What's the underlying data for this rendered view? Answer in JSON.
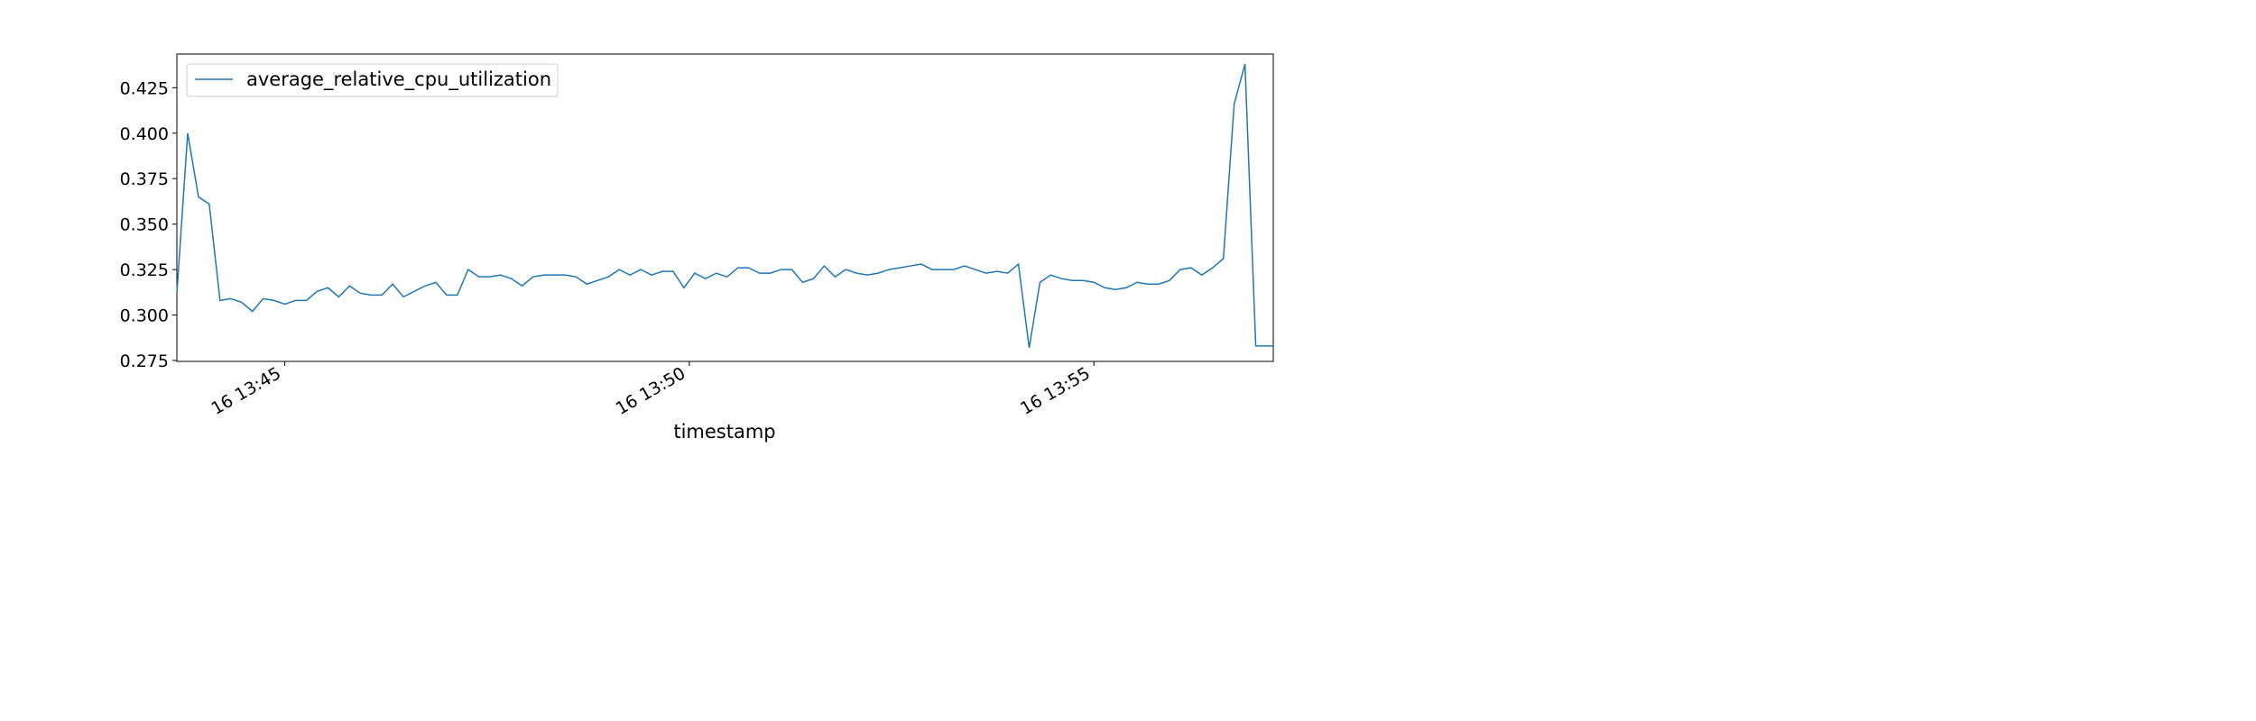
{
  "chart_data": {
    "type": "line",
    "title": "",
    "xlabel": "timestamp",
    "ylabel": "",
    "x_unit": "seconds",
    "xlim": [
      -80,
      733
    ],
    "ylim": [
      0.2745,
      0.4435
    ],
    "grid": false,
    "legend_position": "top-left",
    "colors": {
      "line": "#1f77b4",
      "axis": "#000000",
      "legend_border": "#cccccc"
    },
    "x_ticks": [
      {
        "value": 0,
        "label": "16 13:45"
      },
      {
        "value": 300,
        "label": "16 13:50"
      },
      {
        "value": 600,
        "label": "16 13:55"
      }
    ],
    "y_ticks": [
      {
        "value": 0.275,
        "label": "0.275"
      },
      {
        "value": 0.3,
        "label": "0.300"
      },
      {
        "value": 0.325,
        "label": "0.325"
      },
      {
        "value": 0.35,
        "label": "0.350"
      },
      {
        "value": 0.375,
        "label": "0.375"
      },
      {
        "value": 0.4,
        "label": "0.400"
      },
      {
        "value": 0.425,
        "label": "0.425"
      }
    ],
    "series": [
      {
        "name": "average_relative_cpu_utilization",
        "x": [
          -80,
          -72,
          -64,
          -56,
          -48,
          -40,
          -32,
          -24,
          -16,
          -8,
          0,
          8,
          16,
          24,
          32,
          40,
          48,
          56,
          64,
          72,
          80,
          88,
          96,
          104,
          112,
          120,
          128,
          136,
          144,
          152,
          160,
          168,
          176,
          184,
          192,
          200,
          208,
          216,
          224,
          232,
          240,
          248,
          256,
          264,
          272,
          280,
          288,
          296,
          304,
          312,
          320,
          328,
          336,
          344,
          352,
          360,
          368,
          376,
          384,
          392,
          400,
          408,
          416,
          424,
          432,
          440,
          448,
          456,
          464,
          472,
          480,
          488,
          496,
          504,
          512,
          520,
          528,
          536,
          544,
          552,
          560,
          568,
          576,
          584,
          592,
          600,
          608,
          616,
          624,
          632,
          640,
          648,
          656,
          664,
          672,
          680,
          688,
          696,
          704,
          712,
          720,
          733
        ],
        "y": [
          0.312,
          0.4,
          0.365,
          0.361,
          0.308,
          0.309,
          0.307,
          0.302,
          0.309,
          0.308,
          0.306,
          0.308,
          0.308,
          0.313,
          0.315,
          0.31,
          0.316,
          0.312,
          0.311,
          0.311,
          0.317,
          0.31,
          0.313,
          0.316,
          0.318,
          0.311,
          0.311,
          0.325,
          0.321,
          0.321,
          0.322,
          0.32,
          0.316,
          0.321,
          0.322,
          0.322,
          0.322,
          0.321,
          0.317,
          0.319,
          0.321,
          0.325,
          0.322,
          0.325,
          0.322,
          0.324,
          0.324,
          0.315,
          0.323,
          0.32,
          0.323,
          0.321,
          0.326,
          0.326,
          0.323,
          0.323,
          0.325,
          0.325,
          0.318,
          0.32,
          0.327,
          0.321,
          0.325,
          0.323,
          0.322,
          0.323,
          0.325,
          0.326,
          0.327,
          0.328,
          0.325,
          0.325,
          0.325,
          0.327,
          0.325,
          0.323,
          0.324,
          0.323,
          0.328,
          0.282,
          0.318,
          0.322,
          0.32,
          0.319,
          0.319,
          0.318,
          0.315,
          0.314,
          0.315,
          0.318,
          0.317,
          0.317,
          0.319,
          0.325,
          0.326,
          0.322,
          0.326,
          0.331,
          0.416,
          0.438,
          0.283,
          0.283
        ]
      }
    ]
  }
}
